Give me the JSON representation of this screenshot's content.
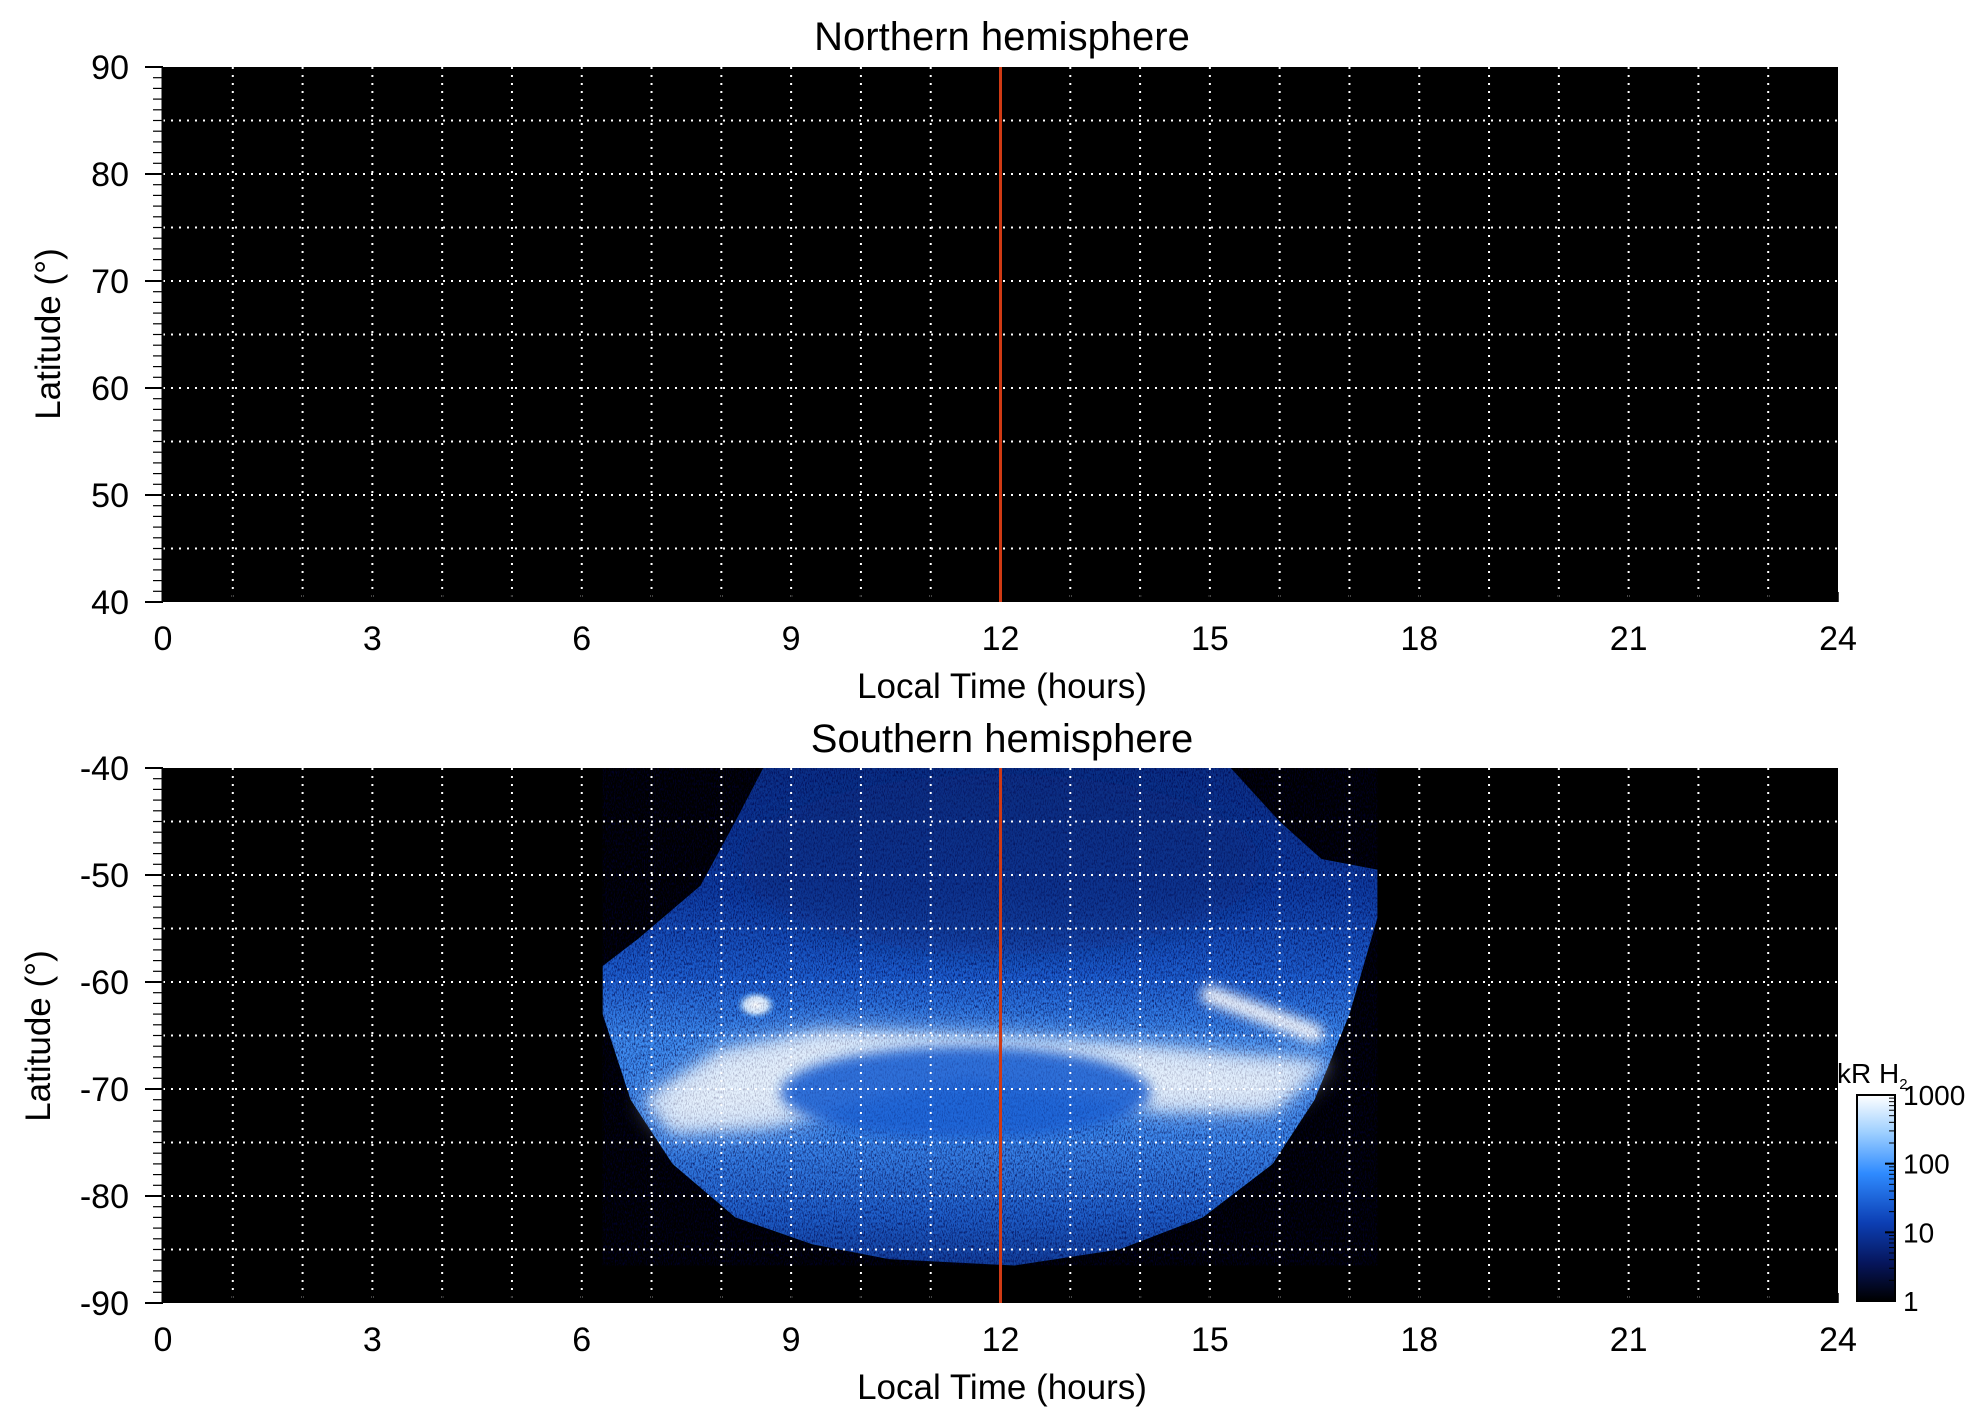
{
  "chart_data": [
    {
      "type": "heatmap",
      "title": "Northern hemisphere",
      "xlabel": "Local Time (hours)",
      "ylabel": "Latitude (°)",
      "xlim": [
        0,
        24
      ],
      "ylim": [
        40,
        90
      ],
      "xticks": [
        0,
        3,
        6,
        9,
        12,
        15,
        18,
        21,
        24
      ],
      "yticks": [
        90,
        80,
        70,
        60,
        50,
        40
      ],
      "x_gridlines": [
        1,
        2,
        3,
        4,
        5,
        6,
        7,
        8,
        9,
        10,
        11,
        12,
        13,
        14,
        15,
        16,
        17,
        18,
        19,
        20,
        21,
        22,
        23
      ],
      "y_gridlines": [
        45,
        50,
        55,
        60,
        65,
        70,
        75,
        80,
        85
      ],
      "grid": "dotted white",
      "background": "#000000",
      "marker_line": {
        "x": 12,
        "color": "#d03a14"
      },
      "emission": []
    },
    {
      "type": "heatmap",
      "title": "Southern hemisphere",
      "xlabel": "Local Time (hours)",
      "ylabel": "Latitude (°)",
      "xlim": [
        0,
        24
      ],
      "ylim": [
        -90,
        -40
      ],
      "xticks": [
        0,
        3,
        6,
        9,
        12,
        15,
        18,
        21,
        24
      ],
      "yticks": [
        -40,
        -50,
        -60,
        -70,
        -80,
        -90
      ],
      "x_gridlines": [
        1,
        2,
        3,
        4,
        5,
        6,
        7,
        8,
        9,
        10,
        11,
        12,
        13,
        14,
        15,
        16,
        17,
        18,
        19,
        20,
        21,
        22,
        23
      ],
      "y_gridlines": [
        -45,
        -50,
        -55,
        -60,
        -65,
        -70,
        -75,
        -80,
        -85
      ],
      "grid": "dotted white",
      "background": "#000000",
      "marker_line": {
        "x": 12,
        "color": "#d03a14"
      },
      "coverage_region": {
        "left_edge": [
          [
            8.6,
            -40
          ],
          [
            8.2,
            -45
          ],
          [
            7.7,
            -51
          ],
          [
            6.8,
            -56
          ],
          [
            6.3,
            -58.5
          ],
          [
            6.3,
            -63
          ],
          [
            6.7,
            -71
          ],
          [
            7.3,
            -77
          ],
          [
            8.2,
            -82
          ],
          [
            9.3,
            -84.5
          ],
          [
            10.4,
            -85.9
          ],
          [
            11.9,
            -86.4
          ]
        ],
        "right_edge": [
          [
            15.3,
            -40
          ],
          [
            16.0,
            -45
          ],
          [
            16.6,
            -48.5
          ],
          [
            17.4,
            -49.5
          ],
          [
            17.4,
            -54
          ],
          [
            17.0,
            -63
          ],
          [
            16.5,
            -71
          ],
          [
            15.9,
            -77
          ],
          [
            14.9,
            -82
          ],
          [
            13.7,
            -85
          ],
          [
            12.2,
            -86.5
          ]
        ]
      },
      "emission": [
        {
          "feature": "main auroral oval",
          "points": [
            [
              6.9,
              -71
            ],
            [
              8.0,
              -66.5
            ],
            [
              9.5,
              -64.6
            ],
            [
              11.0,
              -65
            ],
            [
              12.6,
              -65.5
            ],
            [
              14.3,
              -66.2
            ],
            [
              15.5,
              -67
            ],
            [
              16.7,
              -67.5
            ],
            [
              15.9,
              -72
            ],
            [
              14.3,
              -72
            ],
            [
              12.8,
              -70
            ],
            [
              11.5,
              -69
            ],
            [
              10.1,
              -70.8
            ],
            [
              8.7,
              -73.5
            ],
            [
              7.3,
              -74
            ]
          ],
          "intensity_kR": 900
        },
        {
          "feature": "dusk arc",
          "points": [
            [
              15.0,
              -61.2
            ],
            [
              16.5,
              -64.8
            ]
          ],
          "intensity_kR": 800
        },
        {
          "feature": "dawn spot",
          "points": [
            [
              8.6,
              -61.5
            ],
            [
              8.4,
              -62.8
            ]
          ],
          "intensity_kR": 600
        },
        {
          "feature": "polar cap diffuse",
          "points": [
            [
              9.5,
              -69
            ],
            [
              11.5,
              -72
            ],
            [
              13.5,
              -70
            ]
          ],
          "intensity_kR": 120
        },
        {
          "feature": "low-latitude diffuse",
          "points": [
            [
              9.0,
              -45
            ],
            [
              12.0,
              -50
            ],
            [
              15.0,
              -52
            ]
          ],
          "intensity_kR": 15
        }
      ]
    }
  ],
  "colorbar": {
    "label_main": "kR H",
    "label_subscript": "2",
    "scale": "log",
    "range": [
      1,
      1000
    ],
    "ticks": [
      "1000",
      "100",
      "10",
      "1"
    ],
    "colors": [
      "#ffffff",
      "#9fd0ff",
      "#2f8bff",
      "#0c3fb4",
      "#06155a",
      "#000000"
    ]
  }
}
